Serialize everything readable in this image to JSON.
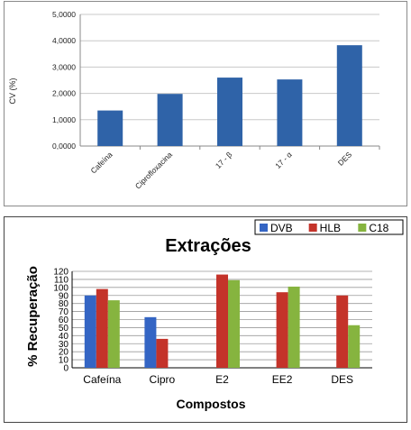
{
  "chart_data": [
    {
      "type": "bar",
      "title": "",
      "ylabel": "CV (%)",
      "xlabel": "",
      "categories": [
        "Cafeína",
        "Ciprofloxacina",
        "17 - β",
        "17 - α",
        "DES"
      ],
      "values": [
        1.35,
        1.98,
        2.6,
        2.53,
        3.83
      ],
      "ylim": [
        0,
        5
      ],
      "yticks": [
        "0,0000",
        "1,0000",
        "2,0000",
        "3,0000",
        "4,0000",
        "5,0000"
      ],
      "grid": true,
      "color": "#2f63a8"
    },
    {
      "type": "bar",
      "title": "Extrações",
      "ylabel": "% Recuperação",
      "xlabel": "Compostos",
      "categories": [
        "Cafeína",
        "Cipro",
        "E2",
        "EE2",
        "DES"
      ],
      "series": [
        {
          "name": "DVB",
          "color": "#3465c4",
          "values": [
            90,
            63,
            0,
            0,
            0
          ]
        },
        {
          "name": "HLB",
          "color": "#c4332a",
          "values": [
            98,
            36,
            116,
            94,
            90
          ]
        },
        {
          "name": "C18",
          "color": "#86b43f",
          "values": [
            84,
            0,
            109,
            101,
            53
          ]
        }
      ],
      "ylim": [
        0,
        120
      ],
      "yticks": [
        "0",
        "10",
        "20",
        "30",
        "40",
        "50",
        "60",
        "70",
        "80",
        "90",
        "100",
        "110",
        "120"
      ],
      "grid": true,
      "legend": "top-right"
    }
  ]
}
